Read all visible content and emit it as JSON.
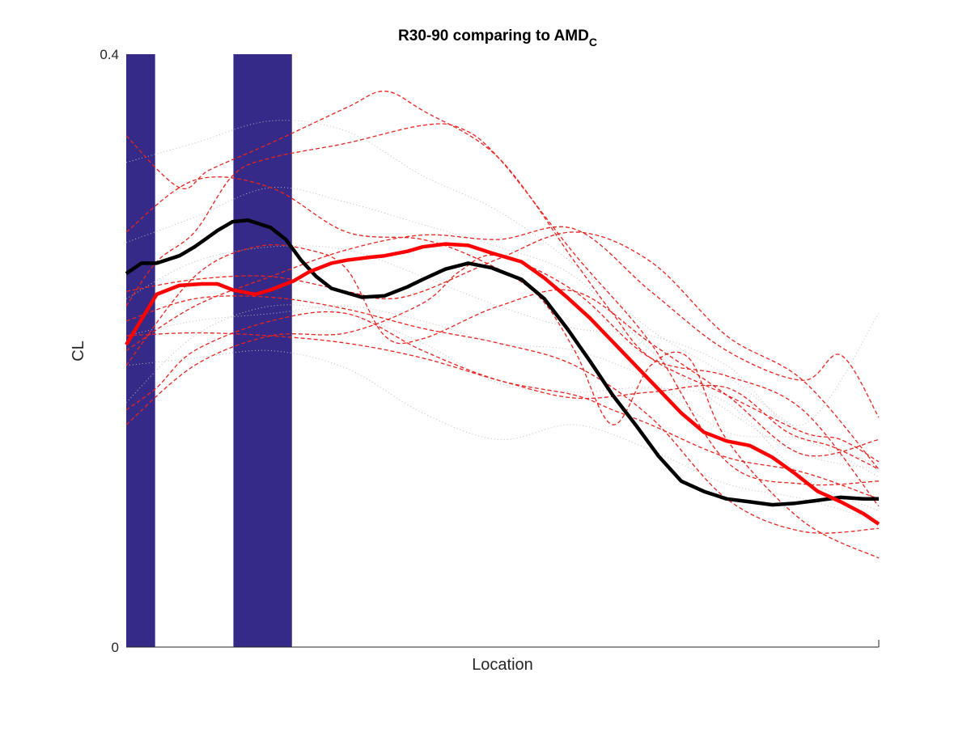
{
  "chart_data": {
    "type": "line",
    "title": "R30-90 comparing to AMD",
    "title_subscript": "C",
    "xlabel": "Location",
    "ylabel": "CL",
    "xlim": [
      1,
      100
    ],
    "ylim": [
      0,
      0.4
    ],
    "yticks": [
      "0",
      "0.4"
    ],
    "xticks": [],
    "grid": false,
    "colors": {
      "highlight_band": "#352A87",
      "control_individual": "#BBBBBB",
      "patient_individual": "#E8231E",
      "control_mean": "#000000",
      "patient_mean": "#FF0000"
    },
    "highlight_regions": [
      {
        "x_start": 1,
        "x_end": 4.8
      },
      {
        "x_start": 15.1,
        "x_end": 22.8
      }
    ],
    "control_individual_series": [
      {
        "x": [
          1,
          10,
          20,
          30,
          40,
          50,
          60,
          70,
          80,
          90,
          100
        ],
        "y": [
          0.327,
          0.34,
          0.355,
          0.348,
          0.318,
          0.294,
          0.258,
          0.214,
          0.183,
          0.145,
          0.123
        ]
      },
      {
        "x": [
          1,
          10,
          20,
          30,
          40,
          50,
          60,
          70,
          80,
          90,
          100
        ],
        "y": [
          0.273,
          0.29,
          0.31,
          0.3,
          0.285,
          0.27,
          0.25,
          0.2,
          0.16,
          0.13,
          0.12
        ]
      },
      {
        "x": [
          1,
          10,
          20,
          30,
          40,
          50,
          60,
          70,
          80,
          90,
          100
        ],
        "y": [
          0.235,
          0.26,
          0.27,
          0.268,
          0.25,
          0.23,
          0.215,
          0.21,
          0.19,
          0.15,
          0.225
        ]
      },
      {
        "x": [
          1,
          10,
          20,
          30,
          40,
          50,
          60,
          70,
          80,
          90,
          100
        ],
        "y": [
          0.165,
          0.21,
          0.23,
          0.225,
          0.205,
          0.178,
          0.172,
          0.175,
          0.165,
          0.115,
          0.092
        ]
      },
      {
        "x": [
          1,
          10,
          20,
          30,
          40,
          50,
          60,
          70,
          80,
          90,
          100
        ],
        "y": [
          0.19,
          0.195,
          0.2,
          0.188,
          0.158,
          0.14,
          0.15,
          0.133,
          0.11,
          0.1,
          0.085
        ]
      },
      {
        "x": [
          1,
          10,
          20,
          30,
          40,
          50,
          60,
          70,
          80,
          90,
          100
        ],
        "y": [
          0.21,
          0.22,
          0.225,
          0.23,
          0.22,
          0.205,
          0.2,
          0.18,
          0.145,
          0.14,
          0.115
        ]
      }
    ],
    "patient_individual_series": [
      {
        "x": [
          1,
          8,
          12,
          20,
          30,
          35,
          40,
          50,
          60,
          65,
          70,
          80,
          90,
          95,
          100
        ],
        "y": [
          0.345,
          0.31,
          0.322,
          0.34,
          0.364,
          0.375,
          0.362,
          0.33,
          0.26,
          0.225,
          0.195,
          0.17,
          0.145,
          0.14,
          0.125
        ]
      },
      {
        "x": [
          1,
          5,
          10,
          15,
          20,
          30,
          40,
          45,
          50,
          60,
          70,
          80,
          90,
          100
        ],
        "y": [
          0.23,
          0.26,
          0.28,
          0.318,
          0.33,
          0.34,
          0.352,
          0.35,
          0.33,
          0.265,
          0.205,
          0.125,
          0.11,
          0.112
        ]
      },
      {
        "x": [
          1,
          10,
          20,
          30,
          40,
          48,
          55,
          60,
          65,
          70,
          75,
          80,
          90,
          100
        ],
        "y": [
          0.28,
          0.315,
          0.31,
          0.28,
          0.275,
          0.26,
          0.238,
          0.2,
          0.15,
          0.19,
          0.195,
          0.14,
          0.085,
          0.06
        ]
      },
      {
        "x": [
          1,
          10,
          18,
          25,
          30,
          35,
          40,
          50,
          60,
          70,
          80,
          90,
          100
        ],
        "y": [
          0.19,
          0.25,
          0.27,
          0.268,
          0.255,
          0.21,
          0.208,
          0.23,
          0.24,
          0.205,
          0.17,
          0.13,
          0.14
        ]
      },
      {
        "x": [
          1,
          10,
          20,
          30,
          40,
          45,
          50,
          60,
          70,
          80,
          90,
          100
        ],
        "y": [
          0.15,
          0.19,
          0.21,
          0.212,
          0.232,
          0.254,
          0.264,
          0.24,
          0.195,
          0.183,
          0.16,
          0.095
        ]
      },
      {
        "x": [
          1,
          10,
          20,
          30,
          35,
          40,
          50,
          60,
          70,
          80,
          90,
          100
        ],
        "y": [
          0.24,
          0.248,
          0.25,
          0.24,
          0.235,
          0.24,
          0.262,
          0.28,
          0.26,
          0.21,
          0.18,
          0.12
        ]
      },
      {
        "x": [
          1,
          10,
          20,
          30,
          40,
          50,
          60,
          70,
          80,
          90,
          95,
          100
        ],
        "y": [
          0.2,
          0.23,
          0.25,
          0.268,
          0.278,
          0.275,
          0.282,
          0.24,
          0.2,
          0.18,
          0.197,
          0.155
        ]
      },
      {
        "x": [
          1,
          10,
          20,
          30,
          40,
          50,
          60,
          70,
          80,
          88,
          94,
          100
        ],
        "y": [
          0.21,
          0.212,
          0.21,
          0.205,
          0.195,
          0.18,
          0.168,
          0.172,
          0.175,
          0.145,
          0.135,
          0.12
        ]
      },
      {
        "x": [
          1,
          5,
          10,
          20,
          30,
          40,
          50,
          60,
          65,
          70,
          80,
          90,
          100
        ],
        "y": [
          0.16,
          0.175,
          0.2,
          0.22,
          0.225,
          0.2,
          0.18,
          0.17,
          0.16,
          0.15,
          0.128,
          0.118,
          0.1
        ]
      },
      {
        "x": [
          1,
          10,
          20,
          30,
          40,
          50,
          60,
          70,
          80,
          90,
          100
        ],
        "y": [
          0.22,
          0.235,
          0.236,
          0.228,
          0.215,
          0.205,
          0.19,
          0.155,
          0.1,
          0.078,
          0.08
        ]
      }
    ],
    "series": [
      {
        "x": [
          1,
          3,
          5,
          8,
          10,
          13,
          15,
          17,
          20,
          22,
          24,
          26,
          28,
          30,
          32,
          35,
          38,
          40,
          43,
          46,
          49,
          53,
          56,
          59,
          62,
          65,
          68,
          71,
          74,
          77,
          80,
          83,
          86,
          89,
          92,
          95,
          98,
          100
        ],
        "y": [
          0.252,
          0.259,
          0.259,
          0.264,
          0.27,
          0.281,
          0.287,
          0.288,
          0.283,
          0.275,
          0.261,
          0.25,
          0.242,
          0.239,
          0.236,
          0.237,
          0.243,
          0.248,
          0.255,
          0.259,
          0.256,
          0.248,
          0.235,
          0.215,
          0.193,
          0.17,
          0.15,
          0.129,
          0.112,
          0.105,
          0.1,
          0.098,
          0.096,
          0.097,
          0.099,
          0.101,
          0.1,
          0.1
        ]
      },
      {
        "x": [
          1,
          3,
          5,
          8,
          11,
          13,
          15,
          18,
          20,
          23,
          25,
          28,
          30,
          33,
          35,
          38,
          40,
          43,
          46,
          49,
          53,
          56,
          59,
          62,
          65,
          68,
          71,
          74,
          77,
          80,
          83,
          86,
          89,
          92,
          95,
          98,
          100
        ],
        "y": [
          0.204,
          0.221,
          0.238,
          0.244,
          0.245,
          0.245,
          0.241,
          0.238,
          0.241,
          0.247,
          0.253,
          0.259,
          0.261,
          0.263,
          0.264,
          0.267,
          0.27,
          0.272,
          0.271,
          0.266,
          0.26,
          0.249,
          0.236,
          0.222,
          0.206,
          0.19,
          0.174,
          0.158,
          0.145,
          0.139,
          0.136,
          0.128,
          0.117,
          0.105,
          0.098,
          0.09,
          0.083
        ]
      }
    ]
  }
}
